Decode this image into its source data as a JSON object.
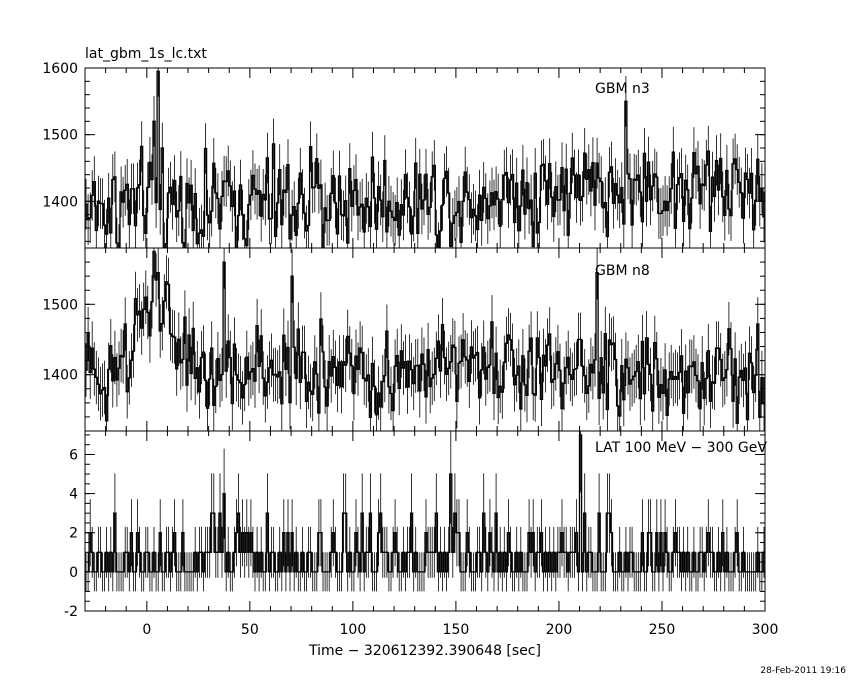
{
  "figure": {
    "title": "lat_gbm_1s_lc.txt",
    "xlabel": "Time − 320612392.390648 [sec]",
    "timestamp": "28-Feb-2011 19:16"
  },
  "chart_data": [
    {
      "type": "line",
      "name": "GBM n3",
      "xlim": [
        -30,
        300
      ],
      "ylim": [
        1330,
        1600
      ],
      "yticks": [
        1400,
        1500,
        1600
      ],
      "xticks": [
        0,
        50,
        100,
        150,
        200,
        250,
        300
      ],
      "step": "histogram with error bars (1 s bins)",
      "baseline": 1400,
      "noise_sd": 35,
      "trend": [
        [
          -30,
          1390
        ],
        [
          0,
          1395
        ],
        [
          100,
          1400
        ],
        [
          150,
          1405
        ],
        [
          200,
          1420
        ],
        [
          300,
          1420
        ]
      ],
      "features": [
        {
          "x": 5,
          "y": 1595,
          "label": "peak"
        },
        {
          "x": 3,
          "y": 1520
        },
        {
          "x": 7,
          "y": 1480
        },
        {
          "x": 232,
          "y": 1550
        }
      ]
    },
    {
      "type": "line",
      "name": "GBM n8",
      "xlim": [
        -30,
        300
      ],
      "ylim": [
        1320,
        1580
      ],
      "yticks": [
        1400,
        1500
      ],
      "step": "histogram with error bars (1 s bins)",
      "baseline": 1400,
      "noise_sd": 30,
      "trend": [
        [
          -30,
          1410
        ],
        [
          -10,
          1395
        ],
        [
          -5,
          1450
        ],
        [
          0,
          1510
        ],
        [
          5,
          1505
        ],
        [
          10,
          1480
        ],
        [
          15,
          1440
        ],
        [
          20,
          1405
        ],
        [
          60,
          1400
        ],
        [
          150,
          1410
        ],
        [
          300,
          1395
        ]
      ],
      "features": [
        {
          "x": 3,
          "y": 1575
        },
        {
          "x": 37,
          "y": 1560
        },
        {
          "x": 70,
          "y": 1540
        },
        {
          "x": 218,
          "y": 1545
        }
      ]
    },
    {
      "type": "line",
      "name": "LAT 100 MeV − 300 GeV",
      "xlim": [
        -30,
        300
      ],
      "ylim": [
        -2,
        7.2
      ],
      "yticks": [
        -2,
        0,
        2,
        4,
        6
      ],
      "step": "counts per 1 s bin with error bars",
      "levels": [
        0,
        1,
        2,
        3,
        4,
        5,
        6,
        7
      ],
      "features": [
        {
          "x": 210,
          "y": 7
        },
        {
          "x": 147,
          "y": 5
        },
        {
          "x": 37,
          "y": 4
        },
        {
          "x": 128,
          "y": 3
        },
        {
          "x": 96,
          "y": 3
        },
        {
          "x": 32,
          "y": 3
        }
      ]
    }
  ]
}
